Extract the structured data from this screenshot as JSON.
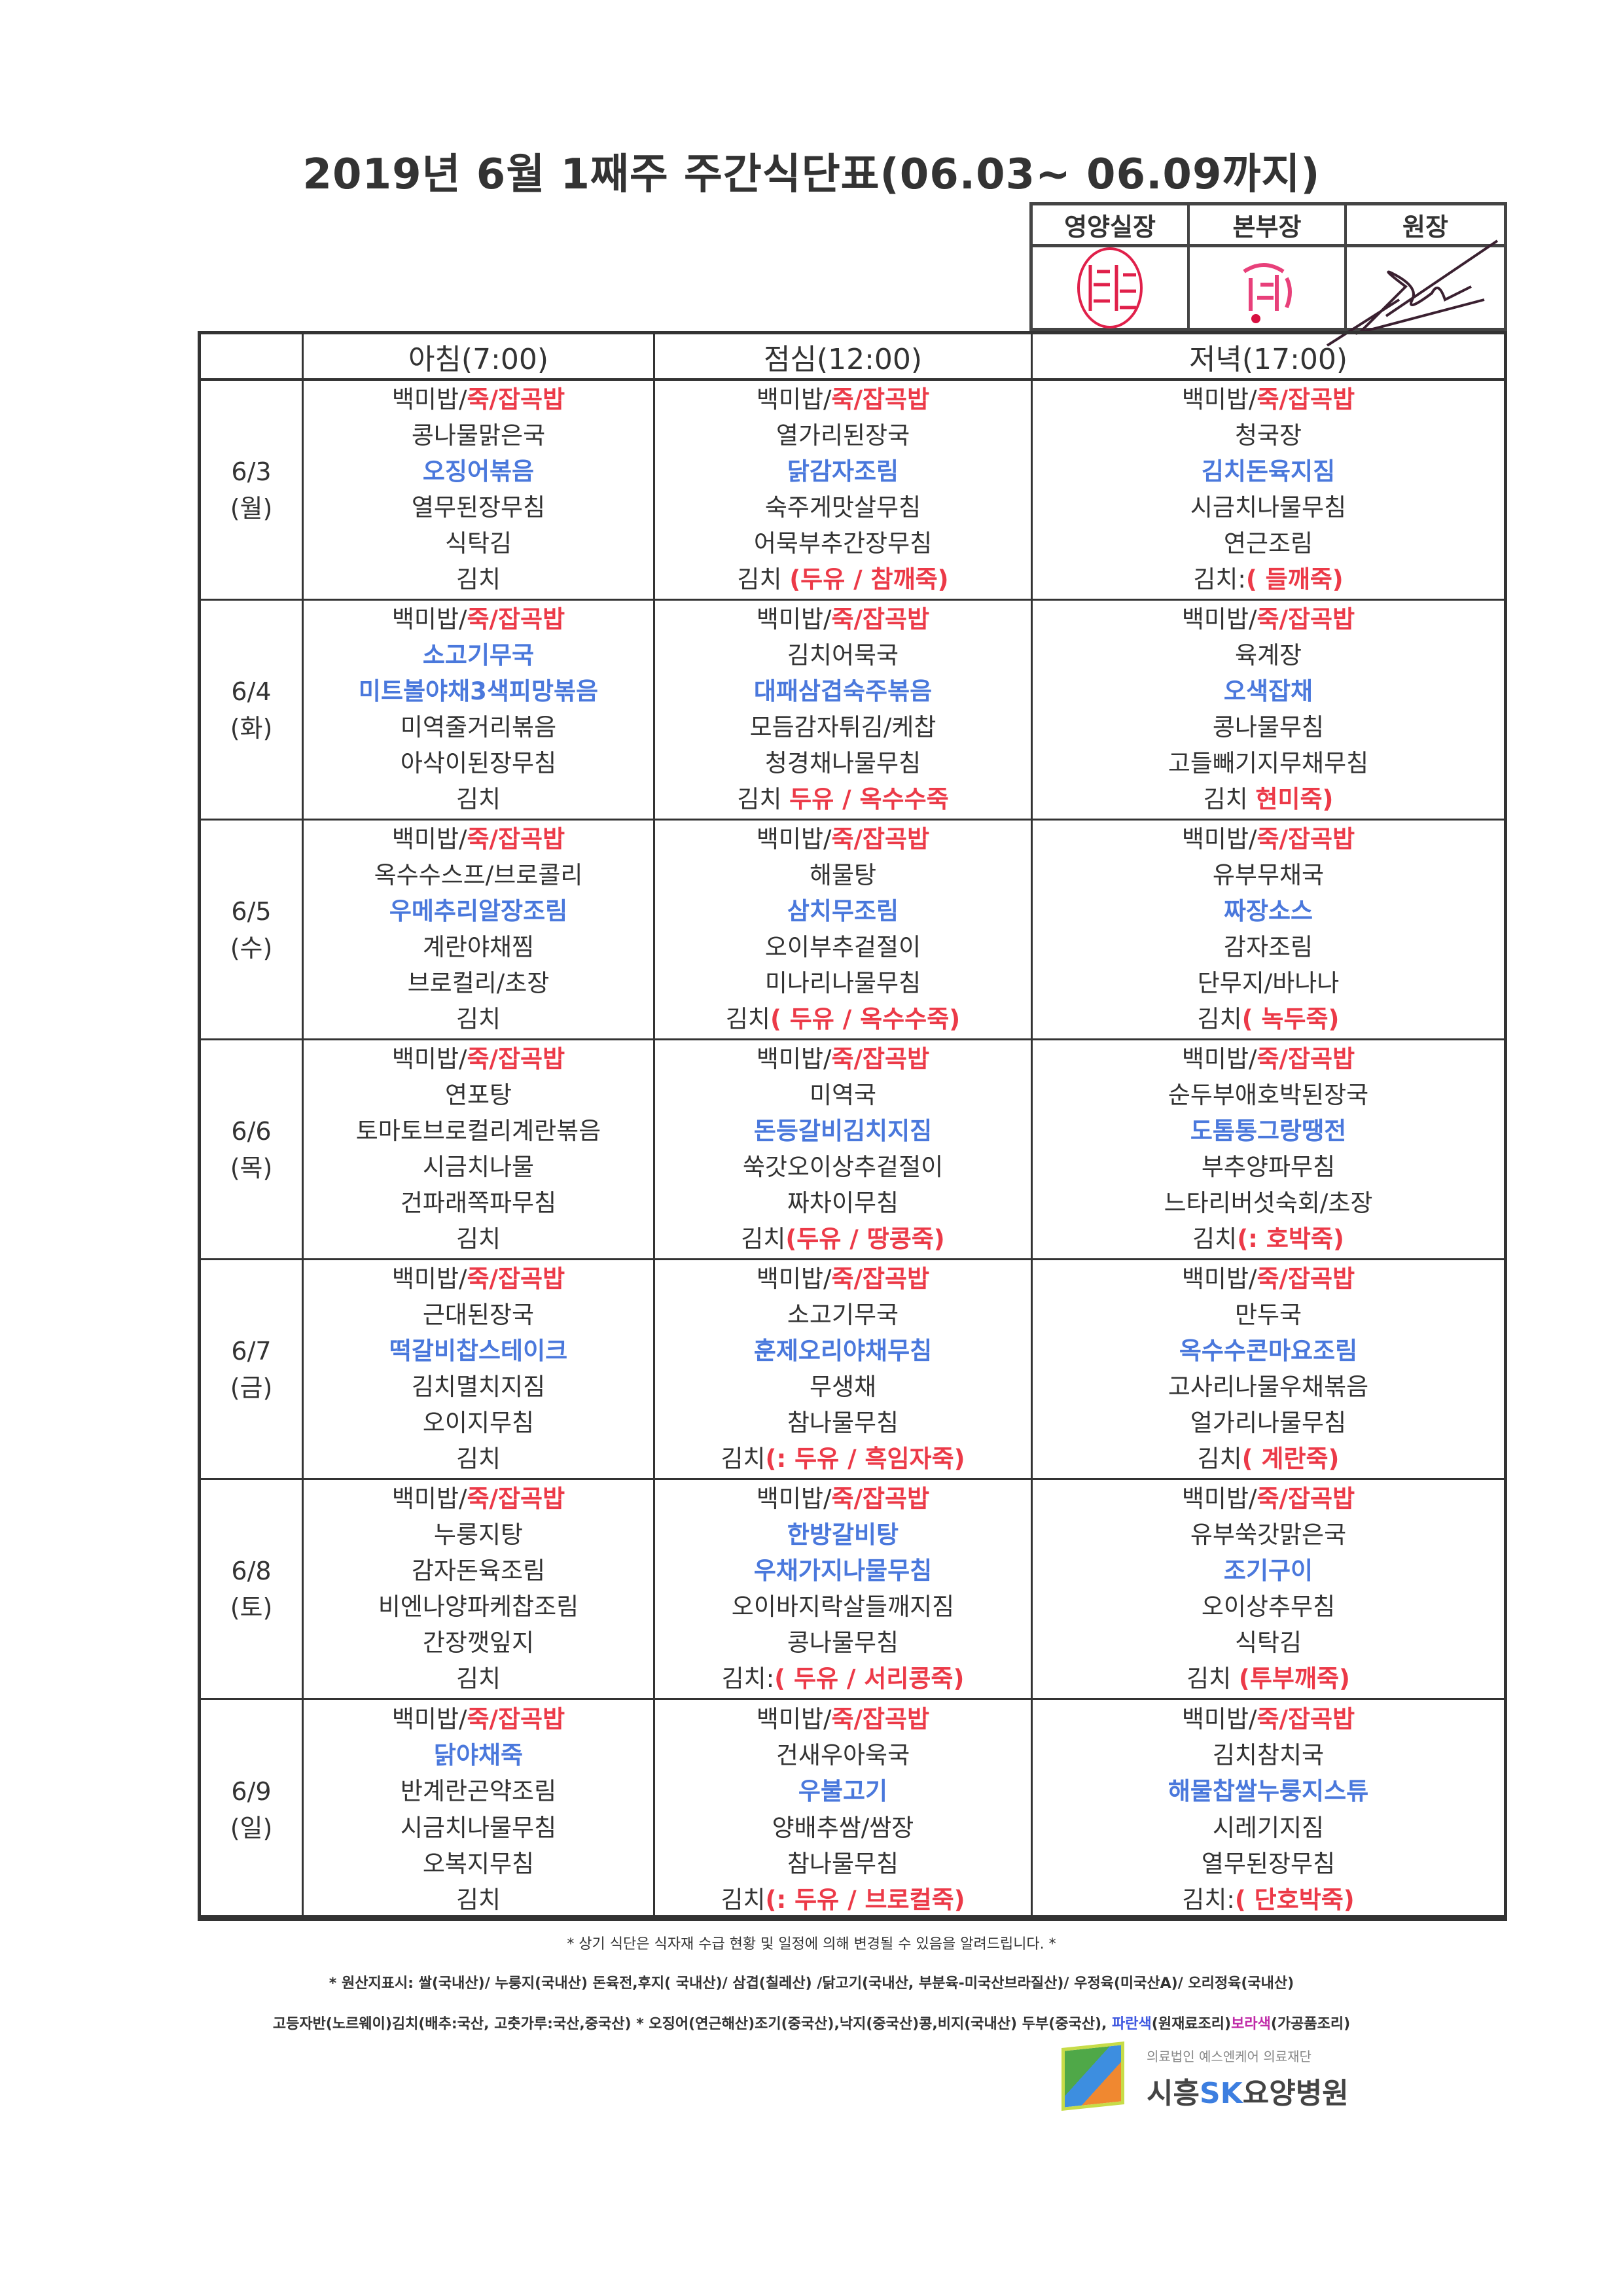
{
  "title": "2019년 6월 1째주 주간식단표(06.03~ 06.09까지)",
  "approval": {
    "headers": [
      "영양실장",
      "본부장",
      "원장"
    ],
    "seal_color": "#e0204a",
    "signature_color": "#3a2030"
  },
  "columns": [
    "",
    "아침(7:00)",
    "점심(12:00)",
    "저녁(17:00)"
  ],
  "colors": {
    "red": "#ec3a48",
    "blue": "#4a78dc",
    "purple": "#c02aa8"
  },
  "days": [
    {
      "date": "6/3",
      "weekday": "(월)",
      "meals": [
        [
          {
            "t": "백미밥/",
            "r": "죽/잡곡밥"
          },
          {
            "t": "콩나물맑은국"
          },
          {
            "b": "오징어볶음"
          },
          {
            "t": "열무된장무침"
          },
          {
            "t": "식탁김"
          },
          {
            "t": "김치"
          }
        ],
        [
          {
            "t": "백미밥/",
            "r": "죽/잡곡밥"
          },
          {
            "t": "열가리된장국"
          },
          {
            "b": "닭감자조림"
          },
          {
            "t": "숙주게맛살무침"
          },
          {
            "t": "어묵부추간장무침"
          },
          {
            "t": "김치 ",
            "r": "(두유 / 참깨죽)"
          }
        ],
        [
          {
            "t": "백미밥/",
            "r": "죽/잡곡밥"
          },
          {
            "t": "청국장"
          },
          {
            "b": "김치돈육지짐"
          },
          {
            "t": "시금치나물무침"
          },
          {
            "t": "연근조림"
          },
          {
            "t": "김치:",
            "r": "( 들깨죽)"
          }
        ]
      ]
    },
    {
      "date": "6/4",
      "weekday": "(화)",
      "meals": [
        [
          {
            "t": "백미밥/",
            "r": "죽/잡곡밥"
          },
          {
            "b": "소고기무국"
          },
          {
            "b": "미트볼야채3색피망볶음"
          },
          {
            "t": "미역줄거리볶음"
          },
          {
            "t": "아삭이된장무침"
          },
          {
            "t": "김치"
          }
        ],
        [
          {
            "t": "백미밥/",
            "r": "죽/잡곡밥"
          },
          {
            "t": "김치어묵국"
          },
          {
            "b": "대패삼겹숙주볶음"
          },
          {
            "t": "모듬감자튀김/케찹"
          },
          {
            "t": "청경채나물무침"
          },
          {
            "t": "김치 ",
            "r": "두유 / 옥수수죽"
          }
        ],
        [
          {
            "t": "백미밥/",
            "r": "죽/잡곡밥"
          },
          {
            "t": "육계장"
          },
          {
            "b": "오색잡채"
          },
          {
            "t": "콩나물무침"
          },
          {
            "t": "고들빼기지무채무침"
          },
          {
            "t": "김치 ",
            "r": "현미죽)"
          }
        ]
      ]
    },
    {
      "date": "6/5",
      "weekday": "(수)",
      "meals": [
        [
          {
            "t": "백미밥/",
            "r": "죽/잡곡밥"
          },
          {
            "t": "옥수수스프/브로콜리"
          },
          {
            "b": "우메추리알장조림"
          },
          {
            "t": "계란야채찜"
          },
          {
            "t": "브로컬리/초장"
          },
          {
            "t": "김치"
          }
        ],
        [
          {
            "t": "백미밥/",
            "r": "죽/잡곡밥"
          },
          {
            "t": "해물탕"
          },
          {
            "b": "삼치무조림"
          },
          {
            "t": "오이부추겉절이"
          },
          {
            "t": "미나리나물무침"
          },
          {
            "t": "김치",
            "r": "( 두유 / 옥수수죽)"
          }
        ],
        [
          {
            "t": "백미밥/",
            "r": "죽/잡곡밥"
          },
          {
            "t": "유부무채국"
          },
          {
            "b": "짜장소스"
          },
          {
            "t": "감자조림"
          },
          {
            "t": "단무지/바나나"
          },
          {
            "t": "김치",
            "r": "( 녹두죽)"
          }
        ]
      ]
    },
    {
      "date": "6/6",
      "weekday": "(목)",
      "meals": [
        [
          {
            "t": "백미밥/",
            "r": "죽/잡곡밥"
          },
          {
            "t": "연포탕"
          },
          {
            "t": "토마토브로컬리계란볶음"
          },
          {
            "t": "시금치나물"
          },
          {
            "t": "건파래쪽파무침"
          },
          {
            "t": "김치"
          }
        ],
        [
          {
            "t": "백미밥/",
            "r": "죽/잡곡밥"
          },
          {
            "t": "미역국"
          },
          {
            "b": "돈등갈비김치지짐"
          },
          {
            "t": "쑥갓오이상추겉절이"
          },
          {
            "t": "짜차이무침"
          },
          {
            "t": "김치",
            "r": "(두유 / 땅콩죽)"
          }
        ],
        [
          {
            "t": "백미밥/",
            "r": "죽/잡곡밥"
          },
          {
            "t": "순두부애호박된장국"
          },
          {
            "b": "도톰통그랑땡전"
          },
          {
            "t": "부추양파무침"
          },
          {
            "t": "느타리버섯숙회/초장"
          },
          {
            "t": "김치",
            "r": "(: 호박죽)"
          }
        ]
      ]
    },
    {
      "date": "6/7",
      "weekday": "(금)",
      "meals": [
        [
          {
            "t": "백미밥/",
            "r": "죽/잡곡밥"
          },
          {
            "t": "근대된장국"
          },
          {
            "b": "떡갈비찹스테이크"
          },
          {
            "t": "김치멸치지짐"
          },
          {
            "t": "오이지무침"
          },
          {
            "t": "김치"
          }
        ],
        [
          {
            "t": "백미밥/",
            "r": "죽/잡곡밥"
          },
          {
            "t": "소고기무국"
          },
          {
            "b": "훈제오리야채무침"
          },
          {
            "t": "무생채"
          },
          {
            "t": "참나물무침"
          },
          {
            "t": "김치",
            "r": "(: 두유 / 흑임자죽)"
          }
        ],
        [
          {
            "t": "백미밥/",
            "r": "죽/잡곡밥"
          },
          {
            "t": "만두국"
          },
          {
            "b": "옥수수콘마요조림"
          },
          {
            "t": "고사리나물우채볶음"
          },
          {
            "t": "얼가리나물무침"
          },
          {
            "t": "김치",
            "r": "( 계란죽)"
          }
        ]
      ]
    },
    {
      "date": "6/8",
      "weekday": "(토)",
      "meals": [
        [
          {
            "t": "백미밥/",
            "r": "죽/잡곡밥"
          },
          {
            "t": "누룽지탕"
          },
          {
            "t": "감자돈육조림"
          },
          {
            "t": "비엔나양파케찹조림"
          },
          {
            "t": "간장깻잎지"
          },
          {
            "t": "김치"
          }
        ],
        [
          {
            "t": "백미밥/",
            "r": "죽/잡곡밥"
          },
          {
            "b": "한방갈비탕"
          },
          {
            "b": "우채가지나물무침"
          },
          {
            "t": "오이바지락살들깨지짐"
          },
          {
            "t": "콩나물무침"
          },
          {
            "t": "김치:",
            "r": "( 두유 / 서리콩죽)"
          }
        ],
        [
          {
            "t": "백미밥/",
            "r": "죽/잡곡밥"
          },
          {
            "t": "유부쑥갓맑은국"
          },
          {
            "b": "조기구이"
          },
          {
            "t": "오이상추무침"
          },
          {
            "t": "식탁김"
          },
          {
            "t": "김치 ",
            "r": "(투부깨죽)"
          }
        ]
      ]
    },
    {
      "date": "6/9",
      "weekday": "(일)",
      "meals": [
        [
          {
            "t": "백미밥/",
            "r": "죽/잡곡밥"
          },
          {
            "b": "닭야채죽"
          },
          {
            "t": "반계란곤약조림"
          },
          {
            "t": "시금치나물무침"
          },
          {
            "t": "오복지무침"
          },
          {
            "t": "김치"
          }
        ],
        [
          {
            "t": "백미밥/",
            "r": "죽/잡곡밥"
          },
          {
            "t": "건새우아욱국"
          },
          {
            "b": "우불고기"
          },
          {
            "t": "양배추쌈/쌈장"
          },
          {
            "t": "참나물무침"
          },
          {
            "t": "김치",
            "r": "(: 두유 / 브로컬죽)"
          }
        ],
        [
          {
            "t": "백미밥/",
            "r": "죽/잡곡밥"
          },
          {
            "t": "김치참치국"
          },
          {
            "b": "해물찹쌀누룽지스튜"
          },
          {
            "t": "시레기지짐"
          },
          {
            "t": "열무된장무침"
          },
          {
            "t": "김치:",
            "r": "( 단호박죽)"
          }
        ]
      ]
    }
  ],
  "notes": {
    "notice": "* 상기 식단은 식자재 수급 현황 및 일정에 의해 변경될 수 있음을 알려드립니다. *",
    "origin_1": "* 원산지표시: 쌀(국내산)/ 누룽지(국내산) 돈육전,후지( 국내산)/ 삼겹(칠레산) /닭고기(국내산, 부분육-미국산브라질산)/ 우정육(미국산A)/ 오리정육(국내산)",
    "origin_2": "고등자반(노르웨이)김치(배추:국산, 고춧가루:국산,중국산) * 오징어(연근해산)조기(중국산),낙지(중국산)콩,비지(국내산) 두부(중국산), ",
    "legend_blue": "파란색",
    "legend_blue_desc": "(원재료조리)",
    "legend_purple": "보라색",
    "legend_purple_desc": "(가공품조리)"
  },
  "logo": {
    "subtitle": "의료법인 예스엔케어 의료재단",
    "name_a": "시흥",
    "name_sk": "SK",
    "name_b": "요양병원"
  }
}
